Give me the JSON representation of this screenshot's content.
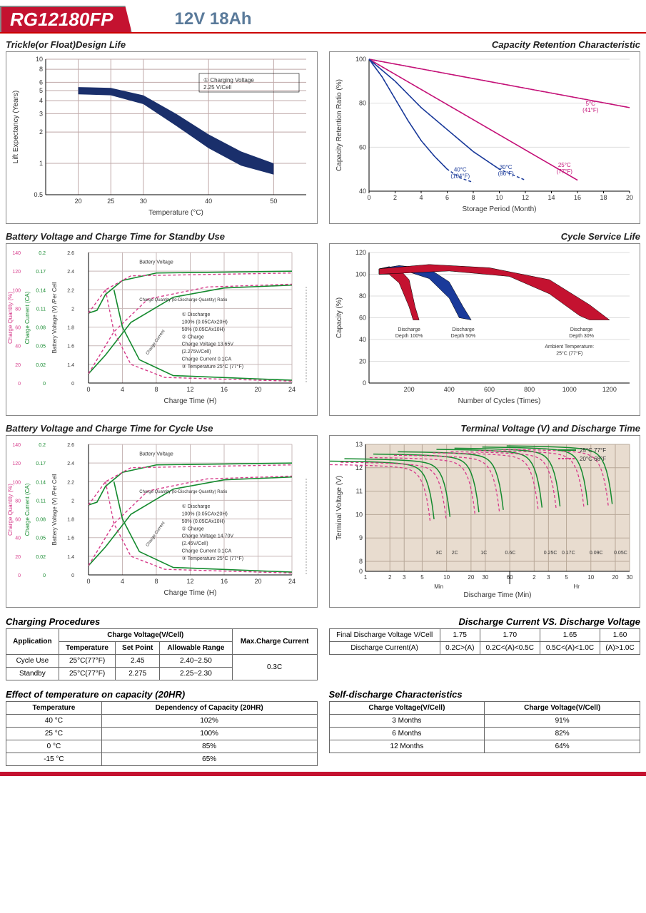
{
  "header": {
    "model": "RG12180FP",
    "spec": "12V  18Ah"
  },
  "chart1": {
    "title": "Trickle(or Float)Design Life",
    "xlabel": "Temperature (°C)",
    "ylabel": "Lift  Expectancy (Years)",
    "xticks": [
      20,
      25,
      30,
      40,
      50
    ],
    "yticks": [
      0.5,
      1,
      2,
      3,
      4,
      5,
      6,
      8,
      10
    ],
    "legend": "① Charging Voltage 2.25 V/Cell",
    "band_color": "#1a2f6b",
    "grid_color": "#bfa8a8",
    "band_upper": [
      [
        20,
        5.4
      ],
      [
        25,
        5.3
      ],
      [
        30,
        4.5
      ],
      [
        35,
        3.0
      ],
      [
        40,
        1.9
      ],
      [
        45,
        1.3
      ],
      [
        50,
        1.0
      ]
    ],
    "band_lower": [
      [
        20,
        4.6
      ],
      [
        25,
        4.5
      ],
      [
        30,
        3.7
      ],
      [
        35,
        2.3
      ],
      [
        40,
        1.4
      ],
      [
        45,
        0.95
      ],
      [
        50,
        0.78
      ]
    ]
  },
  "chart2": {
    "title": "Capacity  Retention  Characteristic",
    "xlabel": "Storage Period (Month)",
    "ylabel": "Capacity Retention Ratio (%)",
    "xlim": [
      0,
      20
    ],
    "ylim": [
      40,
      100
    ],
    "xticks": [
      0,
      2,
      4,
      6,
      8,
      10,
      12,
      14,
      16,
      18,
      20
    ],
    "yticks": [
      40,
      60,
      80,
      100
    ],
    "lines": [
      {
        "color": "#c41278",
        "label": "5°C (41°F)",
        "pts": [
          [
            0,
            100
          ],
          [
            20,
            78
          ]
        ],
        "dash": "4 3",
        "solid_end": 16,
        "lx": 17,
        "ly": 79
      },
      {
        "color": "#c41278",
        "label": "25°C (77°F)",
        "pts": [
          [
            0,
            100
          ],
          [
            16,
            45
          ]
        ],
        "dash": "4 3",
        "solid_end": 11,
        "lx": 15,
        "ly": 51
      },
      {
        "color": "#1a3a9a",
        "label": "30°C (86°F)",
        "pts": [
          [
            0,
            100
          ],
          [
            2,
            90
          ],
          [
            4,
            78
          ],
          [
            6,
            68
          ],
          [
            8,
            58
          ],
          [
            10,
            50
          ],
          [
            12,
            45
          ]
        ],
        "dash": "4 3",
        "solid_end": 8,
        "lx": 10.5,
        "ly": 50
      },
      {
        "color": "#1a3a9a",
        "label": "40°C (104°F)",
        "pts": [
          [
            0,
            100
          ],
          [
            1,
            92
          ],
          [
            2,
            82
          ],
          [
            3,
            72
          ],
          [
            4,
            63
          ],
          [
            5,
            56
          ],
          [
            6,
            50
          ],
          [
            7,
            46
          ],
          [
            8,
            44
          ]
        ],
        "dash": "4 3",
        "solid_end": 5.5,
        "lx": 7,
        "ly": 49
      }
    ]
  },
  "chart3": {
    "title": "Battery Voltage and Charge Time for Standby Use",
    "xlabel": "Charge Time (H)",
    "y1": "Charge Quantity (%)",
    "y2": "Charge Current (CA)",
    "y3": "Battery Voltage (V) /Per Cell",
    "xticks": [
      0,
      4,
      8,
      12,
      16,
      20,
      24
    ],
    "y1ticks": [
      0,
      20,
      40,
      60,
      80,
      100,
      120,
      140
    ],
    "y2ticks": [
      0,
      0.02,
      0.05,
      0.08,
      0.11,
      0.14,
      0.17,
      0.2
    ],
    "y3ticks": [
      0,
      1.4,
      1.6,
      1.8,
      2.0,
      2.2,
      2.4,
      2.6
    ],
    "green": "#148a2e",
    "pink": "#d63a8a",
    "annot": [
      "① Discharge",
      "   100% (0.05CAx20H)",
      "   50% (0.05CAx10H)",
      "② Charge",
      "   Charge Voltage 13.65V",
      "   (2.275V/Cell)",
      "   Charge Current 0.1CA",
      "③ Temperature 25°C (77°F)"
    ],
    "bv_label": "Battery Voltage",
    "cq_label": "Charge Quantity (to-Discharge Quantity) Ratio",
    "cc_label": "Charge Current"
  },
  "chart4": {
    "title": "Cycle Service Life",
    "xlabel": "Number of Cycles (Times)",
    "ylabel": "Capacity (%)",
    "xlim": [
      0,
      1300
    ],
    "ylim": [
      0,
      120
    ],
    "xticks": [
      200,
      400,
      600,
      800,
      1000,
      1200
    ],
    "yticks": [
      0,
      20,
      40,
      60,
      80,
      100,
      120
    ],
    "ambient": "Ambient Temperature: 25°C (77°F)",
    "bands": [
      {
        "color": "#c41230",
        "label": "Discharge Depth 100%",
        "up": [
          [
            50,
            105
          ],
          [
            100,
            107
          ],
          [
            150,
            105
          ],
          [
            200,
            95
          ],
          [
            230,
            70
          ],
          [
            250,
            58
          ]
        ],
        "lo": [
          [
            50,
            100
          ],
          [
            100,
            100
          ],
          [
            150,
            92
          ],
          [
            200,
            70
          ],
          [
            220,
            58
          ]
        ],
        "lx": 200,
        "ly": 48
      },
      {
        "color": "#1a3a9a",
        "label": "Discharge Depth 50%",
        "up": [
          [
            50,
            105
          ],
          [
            150,
            108
          ],
          [
            300,
            105
          ],
          [
            400,
            93
          ],
          [
            470,
            70
          ],
          [
            510,
            58
          ]
        ],
        "lo": [
          [
            50,
            100
          ],
          [
            200,
            102
          ],
          [
            300,
            96
          ],
          [
            400,
            78
          ],
          [
            450,
            60
          ]
        ],
        "lx": 470,
        "ly": 48
      },
      {
        "color": "#c41230",
        "label": "Discharge Depth 30%",
        "up": [
          [
            50,
            105
          ],
          [
            300,
            109
          ],
          [
            600,
            106
          ],
          [
            900,
            95
          ],
          [
            1100,
            72
          ],
          [
            1200,
            58
          ]
        ],
        "lo": [
          [
            50,
            100
          ],
          [
            400,
            103
          ],
          [
            700,
            98
          ],
          [
            900,
            82
          ],
          [
            1050,
            62
          ],
          [
            1100,
            58
          ]
        ],
        "lx": 1060,
        "ly": 48
      }
    ]
  },
  "chart5": {
    "title": "Battery Voltage and Charge Time for Cycle Use",
    "xlabel": "Charge Time (H)",
    "annot": [
      "① Discharge",
      "   100% (0.05CAx20H)",
      "   50% (0.05CAx10H)",
      "② Charge",
      "   Charge Voltage 14.70V",
      "   (2.45V/Cell)",
      "   Charge Current 0.1CA",
      "③ Temperature 25°C (77°F)"
    ]
  },
  "chart6": {
    "title": "Terminal Voltage (V) and Discharge Time",
    "xlabel": "Discharge Time (Min)",
    "ylabel": "Terminal Voltage (V)",
    "yticks": [
      0,
      8,
      9,
      10,
      11,
      12,
      13
    ],
    "xticks_labels": [
      "1",
      "2",
      "3",
      "5",
      "10",
      "20",
      "30",
      "60",
      "2",
      "3",
      "5",
      "10",
      "20",
      "30"
    ],
    "xmin_label": "Min",
    "xhr_label": "Hr",
    "leg1": "25°C 77°F",
    "leg2": "20°C 68°F",
    "leg1_color": "#148a2e",
    "leg2_color": "#d63a8a",
    "curves": [
      "3C",
      "2C",
      "1C",
      "0.6C",
      "0.25C",
      "0.17C",
      "0.09C",
      "0.05C"
    ],
    "grid": "#b8a898"
  },
  "table1": {
    "title": "Charging Procedures",
    "h1": "Application",
    "h2": "Charge Voltage(V/Cell)",
    "h3": "Max.Charge Current",
    "sh1": "Temperature",
    "sh2": "Set Point",
    "sh3": "Allowable Range",
    "rows": [
      {
        "app": "Cycle Use",
        "temp": "25°C(77°F)",
        "sp": "2.45",
        "range": "2.40~2.50"
      },
      {
        "app": "Standby",
        "temp": "25°C(77°F)",
        "sp": "2.275",
        "range": "2.25~2.30"
      }
    ],
    "max": "0.3C"
  },
  "table2": {
    "title": "Discharge Current VS. Discharge Voltage",
    "r1h": "Final Discharge Voltage V/Cell",
    "r1": [
      "1.75",
      "1.70",
      "1.65",
      "1.60"
    ],
    "r2h": "Discharge Current(A)",
    "r2": [
      "0.2C>(A)",
      "0.2C<(A)<0.5C",
      "0.5C<(A)<1.0C",
      "(A)>1.0C"
    ]
  },
  "table3": {
    "title": "Effect of temperature on capacity (20HR)",
    "h1": "Temperature",
    "h2": "Dependency of Capacity (20HR)",
    "rows": [
      [
        "40 °C",
        "102%"
      ],
      [
        "25 °C",
        "100%"
      ],
      [
        "0 °C",
        "85%"
      ],
      [
        "-15 °C",
        "65%"
      ]
    ]
  },
  "table4": {
    "title": "Self-discharge Characteristics",
    "h1": "Charge Voltage(V/Cell)",
    "h2": "Charge Voltage(V/Cell)",
    "rows": [
      [
        "3 Months",
        "91%"
      ],
      [
        "6 Months",
        "82%"
      ],
      [
        "12 Months",
        "64%"
      ]
    ]
  }
}
